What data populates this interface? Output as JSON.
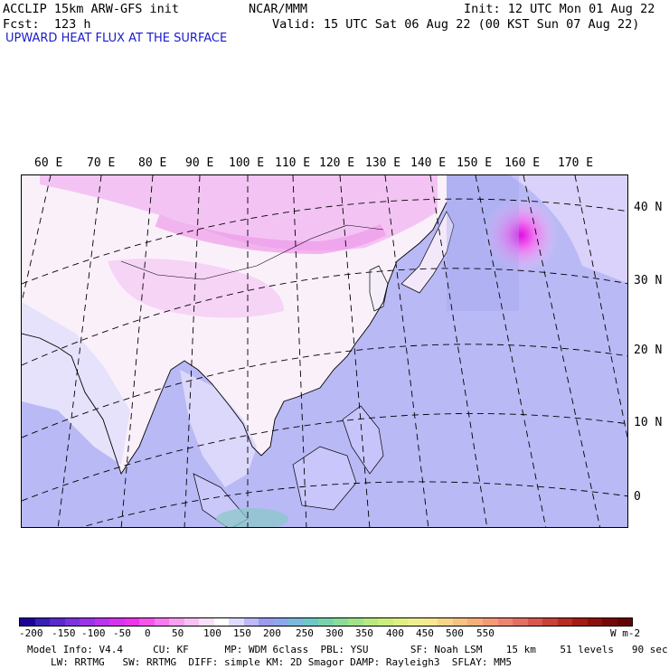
{
  "header": {
    "model": "ACCLIP 15km ARW-GFS init",
    "org": "NCAR/MMM",
    "init": "Init: 12 UTC Mon 01 Aug 22",
    "fcst": "Fcst:  123 h",
    "valid": "Valid: 15 UTC Sat 06 Aug 22 (00 KST Sun 07 Aug 22)",
    "field": "UPWARD HEAT FLUX AT THE SURFACE"
  },
  "map": {
    "lon_labels": [
      "60 E",
      "70 E",
      "80 E",
      "90 E",
      "100 E",
      "110 E",
      "120 E",
      "130 E",
      "140 E",
      "150 E",
      "160 E",
      "170 E"
    ],
    "lat_labels": [
      "40 N",
      "30 N",
      "20 N",
      "10 N",
      "0"
    ]
  },
  "colorbar": {
    "ticks": [
      "-200",
      "-150",
      "-100",
      "-50",
      "0",
      "50",
      "100",
      "150",
      "200",
      "250",
      "300",
      "350",
      "400",
      "450",
      "500",
      "550"
    ],
    "units": "W m-2",
    "colors": [
      "#1f0099",
      "#3a1fb3",
      "#5a2acc",
      "#7a33dd",
      "#9b33e8",
      "#bb33ee",
      "#d633ee",
      "#ee33e8",
      "#f555ea",
      "#f77aee",
      "#f8a0f2",
      "#f8c2f6",
      "#fae0fa",
      "#ffffff",
      "#dedcfe",
      "#bcbaf8",
      "#9a9cf0",
      "#8aa8ea",
      "#7abadc",
      "#6fc8c8",
      "#78d2b0",
      "#8adc98",
      "#a0e488",
      "#b8ea80",
      "#cdee7c",
      "#e0f080",
      "#eef090",
      "#f8e890",
      "#f8d68a",
      "#f8c282",
      "#f6ae7c",
      "#f49a76",
      "#ee8470",
      "#e46e62",
      "#d85850",
      "#c84238",
      "#b82c22",
      "#a41c14",
      "#8e100c",
      "#780808",
      "#640404"
    ]
  },
  "info": {
    "line1": "Model Info: V4.4     CU: KF      MP: WDM 6class  PBL: YSU       SF: Noah LSM    15 km    51 levels   90 sec",
    "line2": "LW: RRTMG   SW: RRTMG  DIFF: simple KM: 2D Smagor DAMP: Rayleigh3  SFLAY: MM5"
  }
}
